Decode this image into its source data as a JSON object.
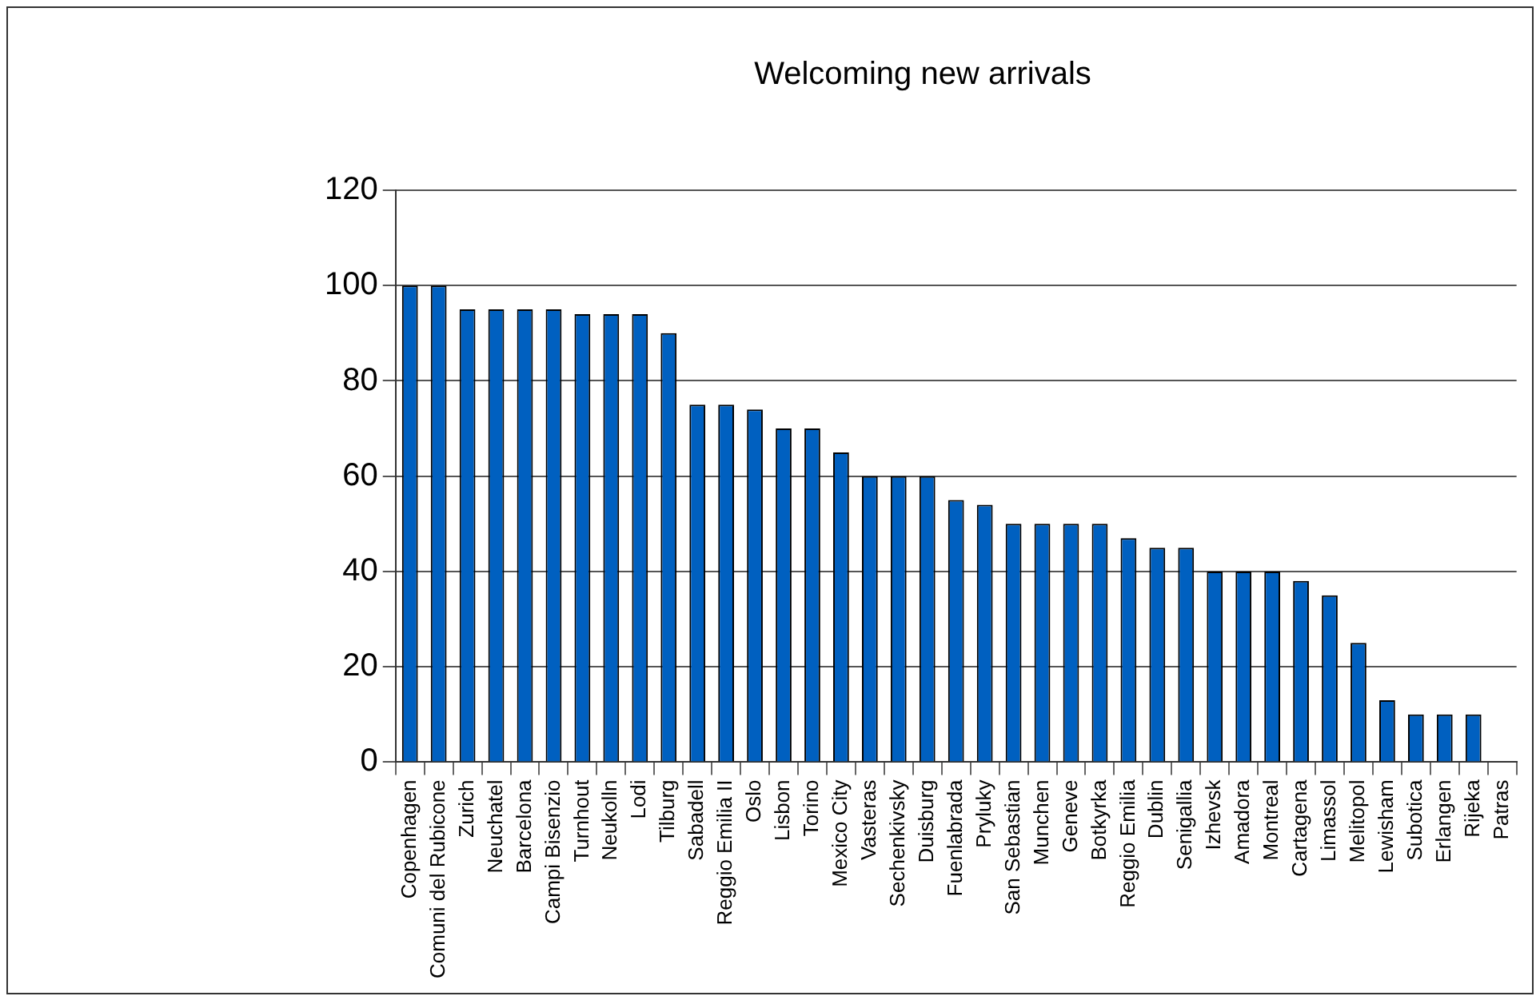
{
  "chart_data": {
    "type": "bar",
    "title": "Welcoming new arrivals",
    "categories": [
      "Copenhagen",
      "Comuni del Rubicone",
      "Zurich",
      "Neuchatel",
      "Barcelona",
      "Campi Bisenzio",
      "Turnhout",
      "Neukolln",
      "Lodi",
      "Tilburg",
      "Sabadell",
      "Reggio Emilia II",
      "Oslo",
      "Lisbon",
      "Torino",
      "Mexico City",
      "Vasteras",
      "Sechenkivsky",
      "Duisburg",
      "Fuenlabrada",
      "Pryluky",
      "San Sebastian",
      "Munchen",
      "Geneve",
      "Botkyrka",
      "Reggio Emilia",
      "Dublin",
      "Senigallia",
      "Izhevsk",
      "Amadora",
      "Montreal",
      "Cartagena",
      "Limassol",
      "Melitopol",
      "Lewisham",
      "Subotica",
      "Erlangen",
      "Rijeka",
      "Patras"
    ],
    "values": [
      100,
      100,
      95,
      95,
      95,
      95,
      94,
      94,
      94,
      90,
      75,
      75,
      74,
      70,
      70,
      65,
      60,
      60,
      60,
      55,
      54,
      50,
      50,
      50,
      50,
      47,
      45,
      45,
      40,
      40,
      40,
      38,
      35,
      25,
      13,
      10,
      10,
      10,
      0
    ],
    "color": "#0060c0",
    "ylim": [
      0,
      120
    ],
    "yticks": [
      0,
      20,
      40,
      60,
      80,
      100,
      120
    ],
    "grid": "y"
  }
}
